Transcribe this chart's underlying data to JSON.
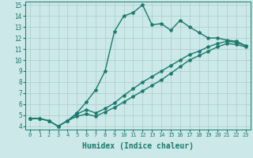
{
  "xlabel": "Humidex (Indice chaleur)",
  "bg_color": "#cce8e8",
  "grid_color": "#aacccc",
  "line_color": "#1a7a6e",
  "xlim": [
    -0.5,
    23.5
  ],
  "ylim": [
    3.7,
    15.3
  ],
  "xticks": [
    0,
    1,
    2,
    3,
    4,
    5,
    6,
    7,
    8,
    9,
    10,
    11,
    12,
    13,
    14,
    15,
    16,
    17,
    18,
    19,
    20,
    21,
    22,
    23
  ],
  "yticks": [
    4,
    5,
    6,
    7,
    8,
    9,
    10,
    11,
    12,
    13,
    14,
    15
  ],
  "line1_x": [
    0,
    1,
    2,
    3,
    4,
    5,
    6,
    7,
    8,
    9,
    10,
    11,
    12,
    13,
    14,
    15,
    16,
    17,
    18,
    19,
    20,
    21,
    22,
    23
  ],
  "line1_y": [
    4.7,
    4.7,
    4.5,
    4.0,
    4.5,
    5.2,
    6.2,
    7.3,
    9.0,
    12.6,
    14.0,
    14.3,
    15.0,
    13.2,
    13.3,
    12.7,
    13.6,
    13.0,
    12.5,
    12.0,
    12.0,
    11.8,
    11.7,
    11.3
  ],
  "line2_x": [
    0,
    1,
    2,
    3,
    4,
    5,
    6,
    7,
    8,
    9,
    10,
    11,
    12,
    13,
    14,
    15,
    16,
    17,
    18,
    19,
    20,
    21,
    22,
    23
  ],
  "line2_y": [
    4.7,
    4.7,
    4.5,
    4.0,
    4.5,
    5.1,
    5.5,
    5.2,
    5.6,
    6.1,
    6.8,
    7.4,
    8.0,
    8.5,
    9.0,
    9.5,
    10.0,
    10.5,
    10.8,
    11.2,
    11.5,
    11.7,
    11.6,
    11.3
  ],
  "line3_x": [
    0,
    1,
    2,
    3,
    4,
    5,
    6,
    7,
    8,
    9,
    10,
    11,
    12,
    13,
    14,
    15,
    16,
    17,
    18,
    19,
    20,
    21,
    22,
    23
  ],
  "line3_y": [
    4.7,
    4.7,
    4.5,
    4.0,
    4.5,
    4.9,
    5.1,
    4.9,
    5.3,
    5.7,
    6.2,
    6.7,
    7.2,
    7.7,
    8.2,
    8.8,
    9.4,
    10.0,
    10.4,
    10.8,
    11.2,
    11.5,
    11.4,
    11.2
  ],
  "marker": "*",
  "markersize": 3,
  "linewidth": 1.0
}
